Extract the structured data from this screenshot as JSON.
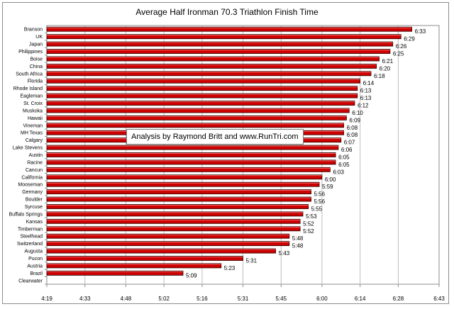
{
  "chart_data": {
    "type": "bar",
    "orientation": "horizontal",
    "title": "Average Half Ironman 70.3 Triathlon Finish Time",
    "annotation": "Analysis by Raymond Britt and www.RunTri.com",
    "x_ticks": [
      "4:19",
      "4:33",
      "4:48",
      "5:02",
      "5:16",
      "5:31",
      "5:45",
      "6:00",
      "6:14",
      "6:28",
      "6:43"
    ],
    "xlim": [
      "4:19",
      "6:43"
    ],
    "grid": true,
    "bar_color": "#cc0000",
    "categories": [
      "Branson",
      "UK",
      "Japan",
      "Philippines",
      "Boise",
      "China",
      "South Africa",
      "Florida",
      "Rhode Island",
      "Eagleman",
      "St. Croix",
      "Muskoka",
      "Hawaii",
      "Vineman",
      "MH Texas",
      "Calgary",
      "Lake Stevens",
      "Austin",
      "Racine",
      "Cancun",
      "California",
      "Mooseman",
      "Germany",
      "Boulder",
      "Syrcuse",
      "Buffalo Springs",
      "Kansas",
      "Timberman",
      "Steelhead",
      "Switzerland",
      "Augusta",
      "Pucon",
      "Austria",
      "Brazil",
      "Clearwater"
    ],
    "values": [
      "6:33",
      "6:29",
      "6:26",
      "6:25",
      "6:21",
      "6:20",
      "6:18",
      "6:14",
      "6:13",
      "6:13",
      "6:12",
      "6:10",
      "6:09",
      "6:08",
      "6:08",
      "6:07",
      "6:06",
      "6:05",
      "6:05",
      "6:03",
      "6:00",
      "5:59",
      "5:56",
      "5:56",
      "5:55",
      "5:53",
      "5:52",
      "5:52",
      "5:48",
      "5:48",
      "5:43",
      "5:31",
      "5:23",
      "5:09",
      ""
    ]
  }
}
